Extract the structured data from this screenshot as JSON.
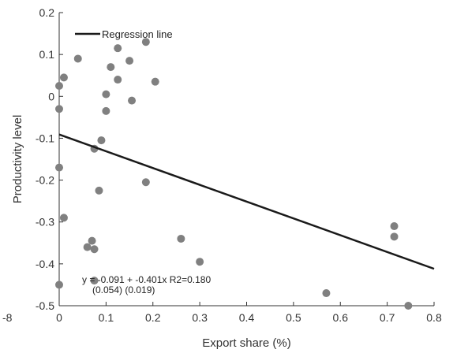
{
  "chart_data": {
    "type": "scatter",
    "xlabel": "Export share (%)",
    "ylabel": "Productivity level",
    "xlim": [
      0,
      0.8
    ],
    "ylim": [
      -0.5,
      0.2
    ],
    "xticks": [
      "0",
      "0.1",
      "0.2",
      "0.3",
      "0.4",
      "0.5",
      "0.6",
      "0.7",
      "0.8"
    ],
    "yticks": [
      "0.2",
      "0.1",
      "0",
      "-0.1",
      "-0.2",
      "-0.3",
      "-0.4",
      "-0.5"
    ],
    "stray_label": "-8",
    "grid": false,
    "legend": {
      "position": "top-left",
      "entries": [
        "Regression line"
      ]
    },
    "colors": {
      "points": "#808080",
      "line": "#1a1a1a",
      "axis": "#333333"
    },
    "points": [
      {
        "x": 0.0,
        "y": 0.025
      },
      {
        "x": 0.0,
        "y": -0.03
      },
      {
        "x": 0.0,
        "y": -0.17
      },
      {
        "x": 0.0,
        "y": -0.45
      },
      {
        "x": 0.01,
        "y": 0.045
      },
      {
        "x": 0.01,
        "y": -0.29
      },
      {
        "x": 0.04,
        "y": 0.09
      },
      {
        "x": 0.06,
        "y": -0.36
      },
      {
        "x": 0.07,
        "y": -0.345
      },
      {
        "x": 0.075,
        "y": -0.365
      },
      {
        "x": 0.075,
        "y": -0.125
      },
      {
        "x": 0.075,
        "y": -0.44
      },
      {
        "x": 0.085,
        "y": -0.225
      },
      {
        "x": 0.09,
        "y": -0.105
      },
      {
        "x": 0.1,
        "y": 0.005
      },
      {
        "x": 0.1,
        "y": -0.035
      },
      {
        "x": 0.11,
        "y": 0.07
      },
      {
        "x": 0.125,
        "y": 0.115
      },
      {
        "x": 0.125,
        "y": 0.04
      },
      {
        "x": 0.15,
        "y": 0.085
      },
      {
        "x": 0.155,
        "y": -0.01
      },
      {
        "x": 0.185,
        "y": 0.13
      },
      {
        "x": 0.185,
        "y": -0.205
      },
      {
        "x": 0.205,
        "y": 0.035
      },
      {
        "x": 0.26,
        "y": -0.34
      },
      {
        "x": 0.3,
        "y": -0.395
      },
      {
        "x": 0.57,
        "y": -0.47
      },
      {
        "x": 0.715,
        "y": -0.31
      },
      {
        "x": 0.715,
        "y": -0.335
      },
      {
        "x": 0.745,
        "y": -0.5
      }
    ],
    "regression": {
      "intercept": -0.091,
      "slope": -0.401
    },
    "annotation": {
      "equation": "y = -0.091 + -0.401x  R2=0.180",
      "std_errors": "(0.054)   (0.019)"
    }
  }
}
